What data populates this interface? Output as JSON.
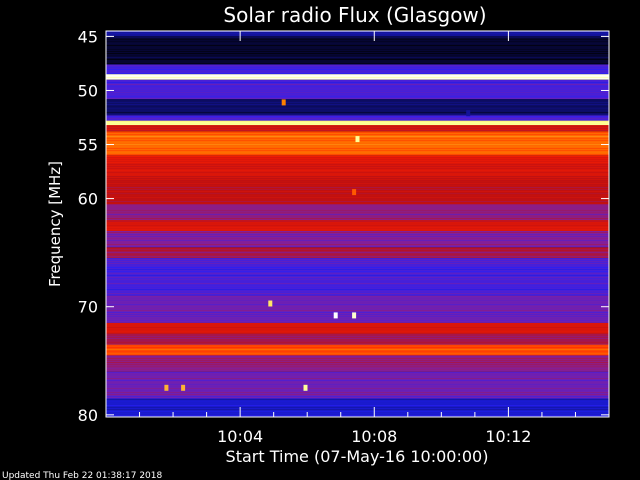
{
  "chart_data": {
    "type": "heatmap",
    "title": "Solar radio Flux (Glasgow)",
    "ylabel": "Frequency [MHz]",
    "xlabel": "Start Time (07-May-16 10:00:00)",
    "ylim": [
      44.5,
      80.2
    ],
    "xlim": [
      0,
      15.0
    ],
    "y_ticks": [
      45,
      50,
      55,
      60,
      70,
      80
    ],
    "y_tick_labels": [
      "45",
      "50",
      "55",
      "60",
      "70",
      "80"
    ],
    "x_ticks": [
      4,
      8,
      12
    ],
    "x_tick_labels": [
      "10:04",
      "10:08",
      "10:12"
    ],
    "x_minor_ticks": [
      1,
      2,
      3,
      5,
      6,
      7,
      9,
      10,
      11,
      13,
      14
    ],
    "grid": false,
    "colormap": [
      "#000000",
      "#101080",
      "#2020ff",
      "#8020a0",
      "#c01010",
      "#ff2000",
      "#ff8000",
      "#ffff80",
      "#ffffff"
    ],
    "frequency_bands": [
      {
        "from": 44.5,
        "to": 45.0,
        "level": 0.15
      },
      {
        "from": 45.0,
        "to": 47.6,
        "level": 0.05
      },
      {
        "from": 47.6,
        "to": 48.5,
        "level": 0.3
      },
      {
        "from": 48.5,
        "to": 49.0,
        "level": 0.98
      },
      {
        "from": 49.0,
        "to": 50.8,
        "level": 0.3
      },
      {
        "from": 50.8,
        "to": 52.3,
        "level": 0.1
      },
      {
        "from": 52.3,
        "to": 52.8,
        "level": 0.3
      },
      {
        "from": 52.8,
        "to": 53.2,
        "level": 0.9
      },
      {
        "from": 53.2,
        "to": 53.8,
        "level": 0.55
      },
      {
        "from": 53.8,
        "to": 56.0,
        "level": 0.72
      },
      {
        "from": 56.0,
        "to": 58.0,
        "level": 0.55
      },
      {
        "from": 58.0,
        "to": 60.5,
        "level": 0.5
      },
      {
        "from": 60.5,
        "to": 62.0,
        "level": 0.4
      },
      {
        "from": 62.0,
        "to": 63.0,
        "level": 0.55
      },
      {
        "from": 63.0,
        "to": 64.5,
        "level": 0.38
      },
      {
        "from": 64.5,
        "to": 65.5,
        "level": 0.45
      },
      {
        "from": 65.5,
        "to": 69.0,
        "level": 0.3
      },
      {
        "from": 69.0,
        "to": 71.5,
        "level": 0.35
      },
      {
        "from": 71.5,
        "to": 72.5,
        "level": 0.55
      },
      {
        "from": 72.5,
        "to": 73.5,
        "level": 0.45
      },
      {
        "from": 73.5,
        "to": 74.5,
        "level": 0.68
      },
      {
        "from": 74.5,
        "to": 76.0,
        "level": 0.4
      },
      {
        "from": 76.0,
        "to": 78.5,
        "level": 0.35
      },
      {
        "from": 78.5,
        "to": 80.2,
        "level": 0.2
      }
    ],
    "bright_spots": [
      {
        "t": 6.85,
        "f": 70.8,
        "level": 1.0
      },
      {
        "t": 7.4,
        "f": 70.8,
        "level": 0.95
      },
      {
        "t": 4.9,
        "f": 69.7,
        "level": 0.85
      },
      {
        "t": 5.95,
        "f": 77.5,
        "level": 0.9
      },
      {
        "t": 1.8,
        "f": 77.5,
        "level": 0.8
      },
      {
        "t": 2.3,
        "f": 77.5,
        "level": 0.8
      },
      {
        "t": 7.5,
        "f": 54.5,
        "level": 0.9
      },
      {
        "t": 7.4,
        "f": 59.4,
        "level": 0.7
      },
      {
        "t": 5.3,
        "f": 51.1,
        "level": 0.75
      },
      {
        "t": 10.8,
        "f": 52.1,
        "level": 0.15
      }
    ]
  },
  "footer": {
    "updated": "Updated Thu Feb 22 01:38:17 2018"
  }
}
